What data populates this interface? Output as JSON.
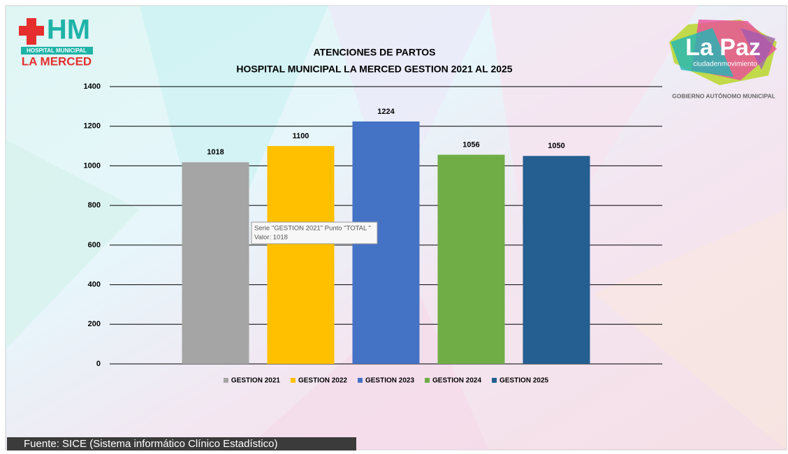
{
  "chart_data": {
    "type": "bar",
    "title": "ATENCIONES DE PARTOS",
    "subtitle": "HOSPITAL MUNICIPAL LA MERCED GESTION 2021 AL 2025",
    "series": [
      {
        "name": "GESTION 2021",
        "color": "#a5a5a5",
        "values": [
          1018
        ]
      },
      {
        "name": "GESTION 2022",
        "color": "#ffc000",
        "values": [
          1100
        ]
      },
      {
        "name": "GESTION 2023",
        "color": "#4472c4",
        "values": [
          1224
        ]
      },
      {
        "name": "GESTION 2024",
        "color": "#70ad47",
        "values": [
          1056
        ]
      },
      {
        "name": "GESTION 2025",
        "color": "#255e91",
        "values": [
          1050
        ]
      }
    ],
    "ylim": [
      0,
      1400
    ],
    "yticks": [
      0,
      200,
      400,
      600,
      800,
      1000,
      1200,
      1400
    ],
    "grid": true,
    "legend": "bottom"
  },
  "tooltip": {
    "line1": "Serie \"GESTION 2021\" Punto \"TOTAL \"",
    "line2": "Valor: 1018"
  },
  "logos": {
    "hm": "HM",
    "hospital": "HOSPITAL MUNICIPAL",
    "merced": "LA MERCED",
    "lapaz": "La Paz",
    "lapaz_sub": "ciudadenmovimiento",
    "gobierno": "GOBIERNO AUTÓNOMO MUNICIPAL"
  },
  "footer": "Fuente: SICE (Sistema informático Clínico Estadístico)"
}
